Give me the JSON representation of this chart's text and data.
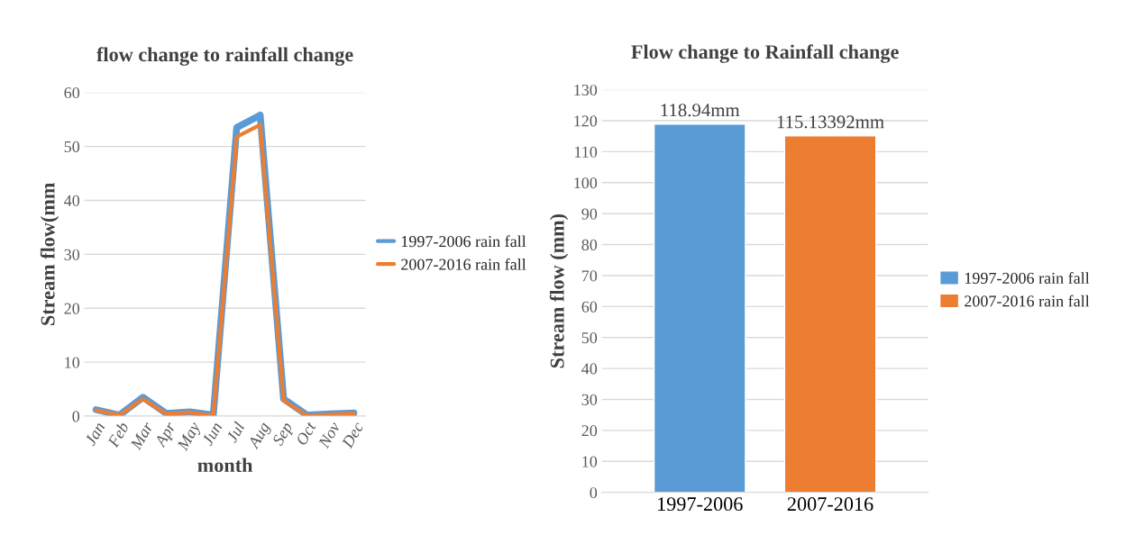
{
  "chart_data": [
    {
      "type": "line",
      "title": "flow change to rainfall change",
      "xlabel": "month",
      "ylabel": "Stream flow(mm",
      "categories": [
        "Jan",
        "Feb",
        "Mar",
        "Apr",
        "May",
        "Jun",
        "Jul",
        "Aug",
        "Sep",
        "Oct",
        "Nov",
        "Dec"
      ],
      "series": [
        {
          "name": "1997-2006 rain fall",
          "color": "#5b9bd5",
          "values": [
            1.2,
            0.2,
            3.5,
            0.5,
            0.8,
            0.2,
            53.5,
            55.8,
            3.2,
            0.2,
            0.4,
            0.6
          ]
        },
        {
          "name": "2007-2016 rain fall",
          "color": "#ed7d31",
          "values": [
            1.1,
            0.2,
            3.2,
            0.4,
            0.7,
            0.1,
            51.8,
            54.0,
            2.9,
            0.1,
            0.3,
            0.5
          ]
        }
      ],
      "ylim": [
        0,
        60
      ],
      "yticks": [
        0,
        10,
        20,
        30,
        40,
        50,
        60
      ],
      "grid": "y",
      "legend": "right",
      "marker": "none",
      "line_style": "solid"
    },
    {
      "type": "bar",
      "title": "Flow change to Rainfall change",
      "ylabel": "Stream flow (mm)",
      "categories": [
        "1997-2006",
        "2007-2016"
      ],
      "series": [
        {
          "name": "1997-2006 rain fall",
          "color": "#5b9bd5",
          "values": [
            118.94,
            null
          ],
          "value_labels": [
            "118.94mm",
            null
          ]
        },
        {
          "name": "2007-2016 rain fall",
          "color": "#ed7d31",
          "values": [
            null,
            115.13392
          ],
          "value_labels": [
            null,
            "115.13392mm"
          ]
        }
      ],
      "ylim": [
        0,
        130
      ],
      "yticks": [
        0,
        10,
        20,
        30,
        40,
        50,
        60,
        70,
        80,
        90,
        100,
        110,
        120,
        130
      ],
      "grid": "y",
      "legend": "right"
    }
  ]
}
